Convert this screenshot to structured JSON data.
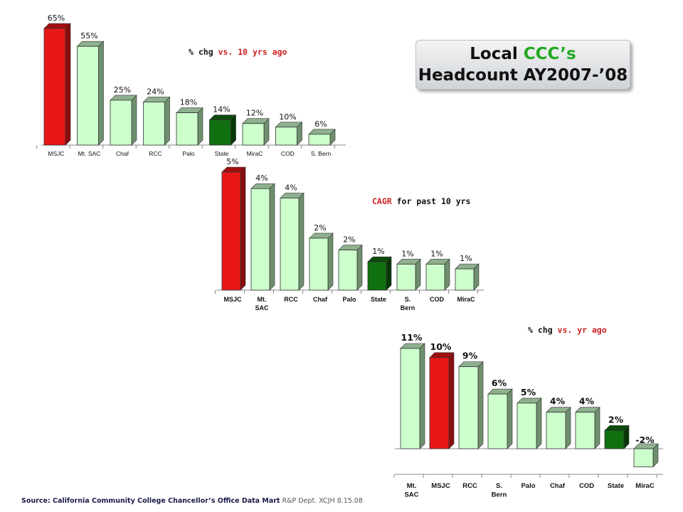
{
  "title": {
    "part1": "Local ",
    "part2": "CCC’s",
    "line2": "Headcount AY2007-’08"
  },
  "colors": {
    "highlight_red": "#e81818",
    "state_green": "#107010",
    "bar_light_green": "#ccffcc",
    "subtitle_red": "#cc2222",
    "title_accent_green": "#22a822"
  },
  "footer": {
    "bold": "Source: California Community College Chancellor’s Office Data Mart",
    "plain": " R&P Dept. XCJH 8.15.08"
  },
  "chart_data": [
    {
      "type": "bar",
      "subtitle": [
        "% chg ",
        "vs. 10 yrs ago"
      ],
      "categories": [
        "MSJC",
        "Mt. SAC",
        "Chaf",
        "RCC",
        "Palo",
        "State",
        "MiraC",
        "COD",
        "S. Bern"
      ],
      "values": [
        65,
        55,
        25,
        24,
        18,
        14,
        12,
        10,
        6
      ],
      "labels": [
        "65%",
        "55%",
        "25%",
        "24%",
        "18%",
        "14%",
        "12%",
        "10%",
        "6%"
      ],
      "colors": [
        "red",
        "light",
        "light",
        "light",
        "light",
        "green",
        "light",
        "light",
        "light"
      ],
      "ylim": [
        0,
        65
      ],
      "grid": false
    },
    {
      "type": "bar",
      "subtitle": [
        "CAGR",
        " for past 10 yrs"
      ],
      "categories": [
        "MSJC",
        "Mt. SAC",
        "RCC",
        "Chaf",
        "Palo",
        "State",
        "S. Bern",
        "COD",
        "MiraC"
      ],
      "values": [
        5.0,
        4.3,
        3.9,
        2.2,
        1.7,
        1.2,
        1.1,
        1.1,
        0.9
      ],
      "labels": [
        "5%",
        "4%",
        "4%",
        "2%",
        "2%",
        "1%",
        "1%",
        "1%",
        "1%"
      ],
      "colors": [
        "red",
        "light",
        "light",
        "light",
        "light",
        "green",
        "light",
        "light",
        "light"
      ],
      "ylim": [
        0,
        5
      ],
      "grid": false
    },
    {
      "type": "bar",
      "subtitle": [
        "% chg ",
        "vs. yr ago"
      ],
      "categories": [
        "Mt. SAC",
        "MSJC",
        "RCC",
        "S. Bern",
        "Palo",
        "Chaf",
        "COD",
        "State",
        "MiraC"
      ],
      "values": [
        11,
        10,
        9,
        6,
        5,
        4,
        4,
        2,
        -2
      ],
      "labels": [
        "11%",
        "10%",
        "9%",
        "6%",
        "5%",
        "4%",
        "4%",
        "2%",
        "-2%"
      ],
      "colors": [
        "light",
        "red",
        "light",
        "light",
        "light",
        "light",
        "light",
        "green",
        "light"
      ],
      "ylim": [
        -2,
        11
      ],
      "grid": false
    }
  ]
}
